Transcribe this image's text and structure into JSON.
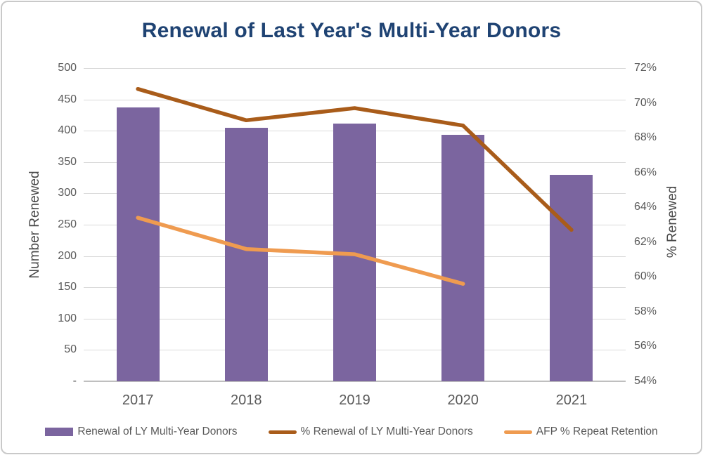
{
  "chart_data": {
    "type": "combo-bar-line",
    "title": "Renewal of Last Year's Multi-Year Donors",
    "categories": [
      "2017",
      "2018",
      "2019",
      "2020",
      "2021"
    ],
    "series": [
      {
        "name": "Renewal of LY Multi-Year Donors",
        "kind": "bar",
        "axis": "left",
        "color": "#7b659f",
        "values": [
          437,
          405,
          411,
          394,
          330
        ]
      },
      {
        "name": "% Renewal of LY Multi-Year Donors",
        "kind": "line",
        "axis": "right",
        "color": "#a95c1a",
        "values": [
          70.8,
          69.0,
          69.7,
          68.7,
          62.7
        ]
      },
      {
        "name": "AFP % Repeat Retention",
        "kind": "line",
        "axis": "right",
        "color": "#ef9b50",
        "values": [
          63.4,
          61.6,
          61.3,
          59.6,
          null
        ]
      }
    ],
    "left_axis": {
      "label": "Number Renewed",
      "min": 0,
      "max": 500,
      "step": 50,
      "tick_labels": [
        "500",
        "450",
        "400",
        "350",
        "300",
        "250",
        "200",
        "150",
        "100",
        "50",
        "-"
      ]
    },
    "right_axis": {
      "label": "% Renewed",
      "min": 54,
      "max": 72,
      "step": 2,
      "tick_labels": [
        "72%",
        "70%",
        "68%",
        "66%",
        "64%",
        "62%",
        "60%",
        "58%",
        "56%",
        "54%"
      ]
    },
    "grid": true,
    "legend_position": "bottom"
  },
  "colors": {
    "title": "#1f4373",
    "bar": "#7b659f",
    "pct_line": "#a95c1a",
    "afp_line": "#ef9b50",
    "gridline": "#d9d9d9",
    "axis_text": "#595959",
    "border": "#c9c9c9",
    "background": "#ffffff"
  }
}
